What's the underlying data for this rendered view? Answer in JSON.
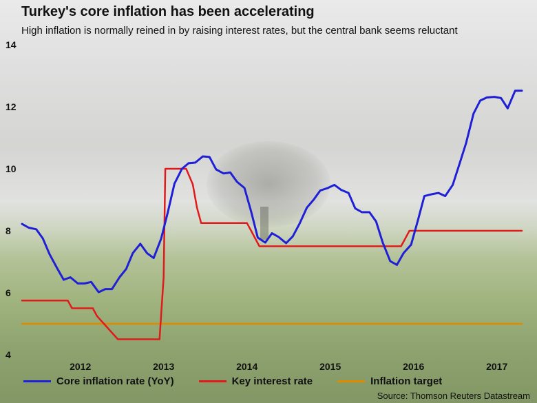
{
  "title": "Turkey's core inflation has been accelerating",
  "subtitle": "High inflation is normally reined in by raising interest rates, but the central bank seems reluctant",
  "source": "Source: Thomson Reuters Datastream",
  "colors": {
    "core": "#1f1fd6",
    "rate": "#e01a1a",
    "target": "#e08a00"
  },
  "chart_data": {
    "type": "line",
    "title": "Turkey's core inflation has been accelerating",
    "xlabel": "",
    "ylabel": "",
    "x_ticks": [
      2012,
      2013,
      2014,
      2015,
      2016,
      2017
    ],
    "ylim": [
      4,
      14
    ],
    "y_ticks": [
      4,
      6,
      8,
      10,
      12,
      14
    ],
    "xlim": [
      2011.75,
      2017.75
    ],
    "grid": false,
    "legend": "bottom",
    "series": [
      {
        "name": "Core inflation rate (YoY)",
        "color": "#1f1fd6",
        "x": [
          2011.75,
          2011.83,
          2011.92,
          2012.0,
          2012.08,
          2012.17,
          2012.25,
          2012.33,
          2012.42,
          2012.5,
          2012.58,
          2012.67,
          2012.75,
          2012.83,
          2012.92,
          2013.0,
          2013.08,
          2013.17,
          2013.25,
          2013.33,
          2013.42,
          2013.5,
          2013.58,
          2013.67,
          2013.75,
          2013.83,
          2013.92,
          2014.0,
          2014.08,
          2014.17,
          2014.25,
          2014.33,
          2014.42,
          2014.5,
          2014.58,
          2014.67,
          2014.75,
          2014.83,
          2014.92,
          2015.0,
          2015.08,
          2015.17,
          2015.25,
          2015.33,
          2015.42,
          2015.5,
          2015.58,
          2015.67,
          2015.75,
          2015.83,
          2015.92,
          2016.0,
          2016.08,
          2016.17,
          2016.25,
          2016.33,
          2016.42,
          2016.5,
          2016.58,
          2016.67,
          2016.75,
          2016.83,
          2016.92,
          2017.0,
          2017.08,
          2017.17,
          2017.25,
          2017.33,
          2017.42,
          2017.5,
          2017.58,
          2017.67,
          2017.75
        ],
        "values": [
          8.22,
          8.1,
          8.05,
          7.75,
          7.25,
          6.8,
          6.42,
          6.5,
          6.3,
          6.3,
          6.35,
          6.02,
          6.12,
          6.12,
          6.5,
          6.77,
          7.28,
          7.58,
          7.28,
          7.12,
          7.75,
          8.6,
          9.52,
          10.0,
          10.18,
          10.2,
          10.4,
          10.38,
          9.98,
          9.85,
          9.88,
          9.58,
          9.38,
          8.62,
          7.78,
          7.62,
          7.92,
          7.8,
          7.6,
          7.82,
          8.22,
          8.75,
          9.0,
          9.3,
          9.38,
          9.48,
          9.32,
          9.22,
          8.72,
          8.6,
          8.6,
          8.3,
          7.62,
          7.02,
          6.9,
          7.28,
          7.55,
          8.32,
          9.12,
          9.18,
          9.22,
          9.12,
          9.48,
          10.15,
          10.82,
          11.78,
          12.2,
          12.3,
          12.32,
          12.28,
          11.95,
          12.52,
          12.52
        ]
      },
      {
        "name": "Key interest rate",
        "color": "#e01a1a",
        "x": [
          2011.75,
          2012.3,
          2012.35,
          2012.6,
          2012.65,
          2012.9,
          2013.4,
          2013.45,
          2013.47,
          2013.72,
          2013.8,
          2013.85,
          2013.9,
          2014.2,
          2014.4,
          2014.45,
          2014.5,
          2014.55,
          2014.6,
          2014.65,
          2015.0,
          2015.5,
          2016.0,
          2016.3,
          2016.35,
          2016.4,
          2016.5,
          2017.0,
          2017.5,
          2017.75
        ],
        "values": [
          5.75,
          5.75,
          5.5,
          5.5,
          5.25,
          4.5,
          4.5,
          6.5,
          10.0,
          10.0,
          9.5,
          8.75,
          8.25,
          8.25,
          8.25,
          8.25,
          8.0,
          7.75,
          7.5,
          7.5,
          7.5,
          7.5,
          7.5,
          7.5,
          7.75,
          8.0,
          8.0,
          8.0,
          8.0,
          8.0
        ]
      },
      {
        "name": "Inflation target",
        "color": "#e08a00",
        "x": [
          2011.75,
          2017.75
        ],
        "values": [
          5.0,
          5.0
        ]
      }
    ]
  }
}
